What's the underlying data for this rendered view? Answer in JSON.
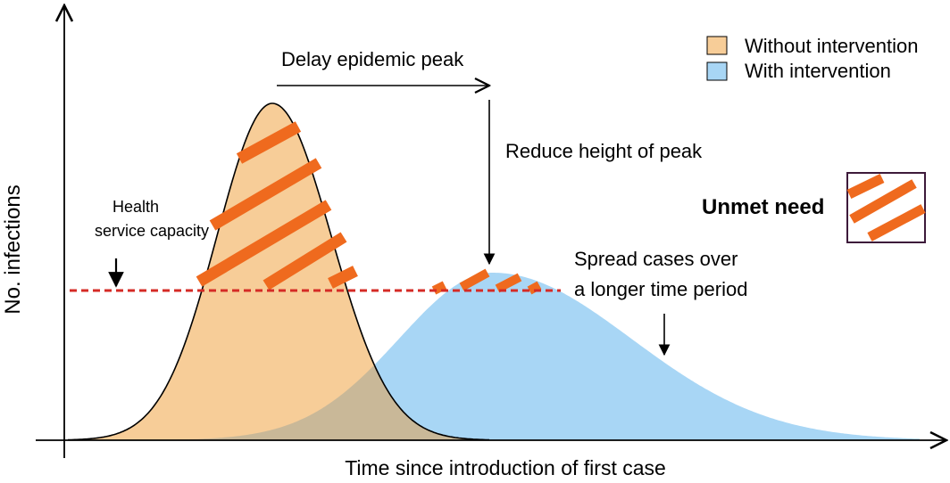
{
  "axes": {
    "xlabel": "Time since introduction of first case",
    "ylabel": "No. infections"
  },
  "legend": {
    "position": "top-right",
    "items": [
      {
        "label": "Without intervention",
        "color": "#f7cd98"
      },
      {
        "label": "With intervention",
        "color": "#a8d6f5"
      }
    ]
  },
  "annotations": {
    "delay_peak": "Delay epidemic peak",
    "reduce_height": "Reduce height of peak",
    "health_capacity_line1": "Health",
    "health_capacity_line2": "service capacity",
    "spread_line1": "Spread cases over",
    "spread_line2": "a longer time period",
    "unmet_need": "Unmet need"
  },
  "colors": {
    "without_fill": "#f7cd98",
    "with_fill": "#a8d6f5",
    "overlap_fill": "#c9b898",
    "hatch": "#ef6a1e",
    "capacity_line": "#d52b26",
    "unmet_box_border": "#3d1a3a"
  },
  "curves": {
    "without_peak": "high, early",
    "with_peak": "low, late"
  }
}
